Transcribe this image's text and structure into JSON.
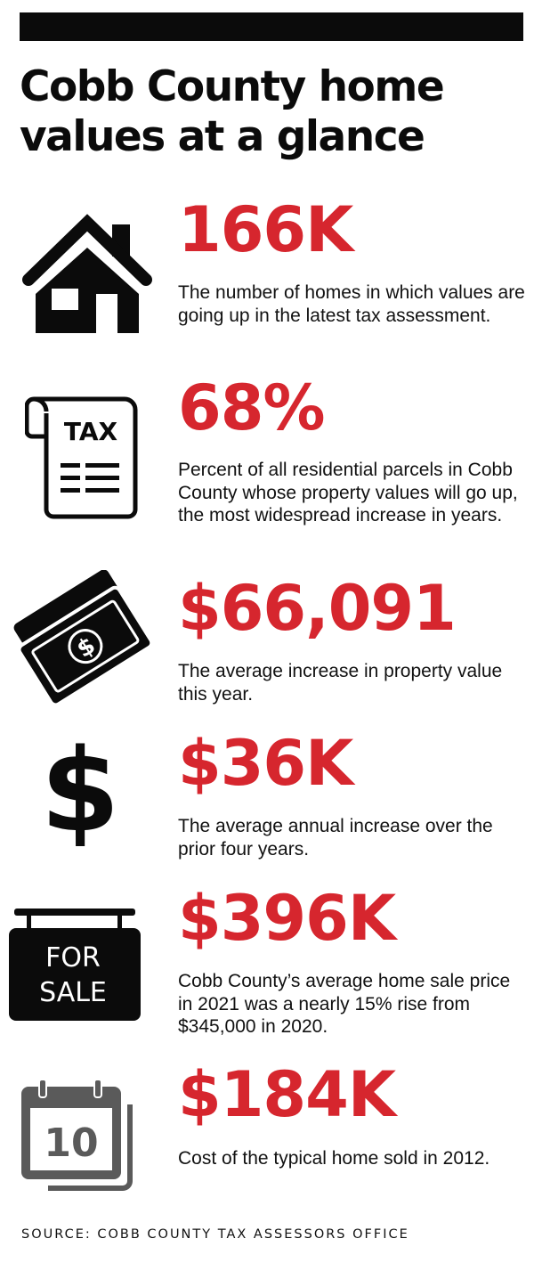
{
  "title": "Cobb County home values at a glance",
  "stats": [
    {
      "icon": "house-icon",
      "value": "166K",
      "description": "The number of homes in which values are going up in the latest tax assessment."
    },
    {
      "icon": "tax-document-icon",
      "icon_label": "TAX",
      "value": "68%",
      "description": "Percent of all residential parcels in Cobb County whose property values will go up, the most widespread increase in years."
    },
    {
      "icon": "cash-bills-icon",
      "icon_label": "$",
      "value": "$66,091",
      "description": "The average increase in property value this year."
    },
    {
      "icon": "dollar-sign-icon",
      "icon_label": "$",
      "value": "$36K",
      "description": "The average annual increase over the prior four years."
    },
    {
      "icon": "for-sale-sign-icon",
      "icon_label_line1": "FOR",
      "icon_label_line2": "SALE",
      "value": "$396K",
      "description": "Cobb County’s average home sale price in 2021 was a nearly 15% rise from $345,000 in 2020."
    },
    {
      "icon": "calendar-icon",
      "icon_label": "10",
      "value": "$184K",
      "description": "Cost of the typical home sold in 2012."
    }
  ],
  "source": "SOURCE: COBB COUNTY TAX ASSESSORS OFFICE",
  "colors": {
    "accent": "#d6262e",
    "text": "#111111",
    "calendar": "#5a5a5a"
  }
}
